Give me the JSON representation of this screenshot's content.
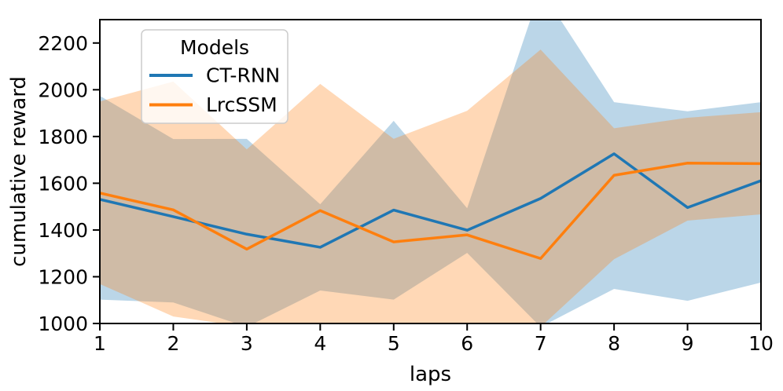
{
  "figure": {
    "background": "#ffffff"
  },
  "chart_data": {
    "type": "line",
    "title": "",
    "xlabel": "laps",
    "ylabel": "cumulative reward",
    "xlim": [
      1,
      10
    ],
    "ylim": [
      1000,
      2300
    ],
    "xticks": [
      1,
      2,
      3,
      4,
      5,
      6,
      7,
      8,
      9,
      10
    ],
    "yticks": [
      1000,
      1200,
      1400,
      1600,
      1800,
      2000,
      2200
    ],
    "grid": false,
    "legend": {
      "title": "Models",
      "position": "upper left"
    },
    "x": [
      1,
      2,
      3,
      4,
      5,
      6,
      7,
      8,
      9,
      10
    ],
    "series": [
      {
        "name": "CT-RNN",
        "color": "#1f77b4",
        "values": [
          1531,
          1457,
          1382,
          1326,
          1485,
          1399,
          1535,
          1726,
          1496,
          1611
        ],
        "band_upper": [
          1974,
          1789,
          1790,
          1510,
          1867,
          1493,
          2430,
          1947,
          1908,
          1947
        ],
        "band_lower": [
          1102,
          1090,
          985,
          1141,
          1102,
          1302,
          985,
          1148,
          1097,
          1175
        ],
        "band_opacity": 0.3
      },
      {
        "name": "LrcSSM",
        "color": "#ff7f0e",
        "values": [
          1558,
          1486,
          1318,
          1483,
          1349,
          1379,
          1278,
          1634,
          1686,
          1684
        ],
        "band_upper": [
          1950,
          2035,
          1745,
          2025,
          1790,
          1910,
          2172,
          1835,
          1880,
          1904
        ],
        "band_lower": [
          1169,
          1030,
          985,
          985,
          985,
          985,
          985,
          1275,
          1440,
          1467
        ],
        "band_opacity": 0.3
      }
    ]
  },
  "style": {
    "spine_color": "#000000",
    "legend_border": "#cccccc",
    "legend_fill": "#ffffff"
  }
}
